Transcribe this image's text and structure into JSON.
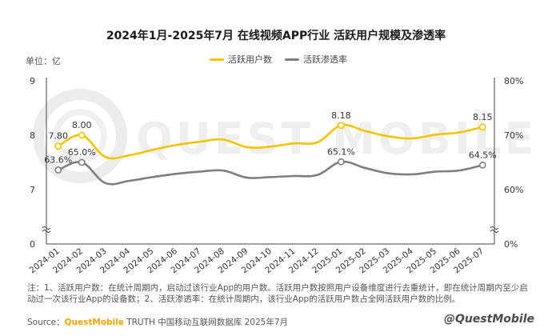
{
  "chart_data": {
    "type": "line",
    "title": "2024年1月-2025年7月 在线视频APP行业 活跃用户规模及渗透率",
    "ylabel_left": "单位：亿",
    "categories": [
      "2024-01",
      "2024-02",
      "2024-03",
      "2024-04",
      "2024-05",
      "2024-06",
      "2024-07",
      "2024-08",
      "2024-09",
      "2024-10",
      "2024-11",
      "2024-12",
      "2025-01",
      "2025-02",
      "2025-03",
      "2025-04",
      "2025-05",
      "2025-06",
      "2025-07"
    ],
    "series": [
      {
        "name": "活跃用户数",
        "axis": "left",
        "color": "#f5c400",
        "values": [
          7.8,
          8.0,
          7.6,
          7.63,
          7.73,
          7.82,
          7.88,
          7.92,
          7.78,
          7.79,
          7.85,
          7.87,
          8.18,
          8.08,
          7.98,
          7.94,
          8.01,
          8.05,
          8.15
        ],
        "labels": {
          "0": "7.80",
          "1": "8.00",
          "12": "8.18",
          "18": "8.15"
        }
      },
      {
        "name": "活跃渗透率",
        "axis": "right",
        "color": "#7f7f7f",
        "values": [
          63.6,
          65.0,
          61.2,
          61.6,
          62.3,
          62.9,
          63.3,
          63.5,
          62.2,
          62.3,
          62.5,
          62.7,
          65.1,
          64.0,
          63.0,
          62.8,
          63.3,
          63.5,
          64.5
        ],
        "labels": {
          "0": "63.6%",
          "1": "65.0%",
          "12": "65.1%",
          "18": "64.5%"
        }
      }
    ],
    "y_left": {
      "ticks": [
        "9",
        "8",
        "7",
        "0"
      ],
      "break": true,
      "range": [
        0,
        9
      ]
    },
    "y_right": {
      "ticks": [
        "80%",
        "70%",
        "60%",
        "0%"
      ],
      "break": true,
      "range": [
        0,
        80
      ]
    },
    "grid": false,
    "legend": "top-center"
  },
  "unit_label": "单位：亿",
  "note": "注：1、活跃用户数：在统计周期内，启动过该行业App的用户数。活跃用户数按照用户设备维度进行去重统计，即在统计周期内至少启动过一次该行业App的设备数；2、活跃渗透率：在统计周期内，该行业App的活跃用户数占全网活跃用户数的比例。",
  "source_prefix": "Source：",
  "source_brand": "QuestMobile",
  "source_suffix": " TRUTH 中国移动互联网数据库 2025年7月",
  "watermark_br": "@QuestMobile",
  "watermark_bg": "QUEST MOBILE"
}
